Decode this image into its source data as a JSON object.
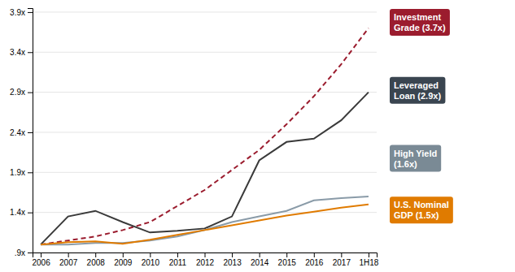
{
  "chart_data": {
    "type": "line",
    "categories": [
      "2006",
      "2007",
      "2008",
      "2009",
      "2010",
      "2011",
      "2012",
      "2013",
      "2014",
      "2015",
      "2016",
      "2017",
      "1H18"
    ],
    "series": [
      {
        "color": "#9b1c2e",
        "line_style": "dashed",
        "values": [
          1.0,
          1.05,
          1.1,
          1.18,
          1.28,
          1.48,
          1.68,
          1.93,
          2.18,
          2.5,
          2.85,
          3.25,
          3.7
        ]
      },
      {
        "color": "#3a3a3a",
        "line_style": "solid",
        "values": [
          1.0,
          1.35,
          1.42,
          1.28,
          1.15,
          1.17,
          1.2,
          1.35,
          2.05,
          2.28,
          2.32,
          2.55,
          2.9
        ]
      },
      {
        "color": "#8a9ba8",
        "line_style": "solid",
        "values": [
          1.0,
          1.0,
          1.02,
          1.02,
          1.05,
          1.1,
          1.18,
          1.28,
          1.35,
          1.42,
          1.55,
          1.58,
          1.6
        ]
      },
      {
        "color": "#e07b00",
        "line_style": "solid",
        "values": [
          1.0,
          1.03,
          1.04,
          1.01,
          1.06,
          1.12,
          1.18,
          1.24,
          1.3,
          1.36,
          1.41,
          1.46,
          1.5
        ]
      }
    ],
    "ylim": [
      0.9,
      3.95
    ],
    "yticks": [
      {
        "value": 0.9,
        "label": ".9x"
      },
      {
        "value": 1.4,
        "label": "1.4x"
      },
      {
        "value": 1.9,
        "label": "1.9x"
      },
      {
        "value": 2.4,
        "label": "2.4x"
      },
      {
        "value": 2.9,
        "label": "2.9x"
      },
      {
        "value": 3.4,
        "label": "3.4x"
      },
      {
        "value": 3.9,
        "label": "3.9x"
      }
    ],
    "grid": true,
    "annotations": [
      {
        "text": "Investment\nGrade (3.7x)",
        "color": "#9b1c2e"
      },
      {
        "text": "Leveraged\nLoan (2.9x)",
        "color": "#3a4550"
      },
      {
        "text": "High Yield\n(1.6x)",
        "color": "#7a8a95"
      },
      {
        "text": "U.S. Nominal\nGDP (1.5x)",
        "color": "#e07b00"
      }
    ]
  }
}
